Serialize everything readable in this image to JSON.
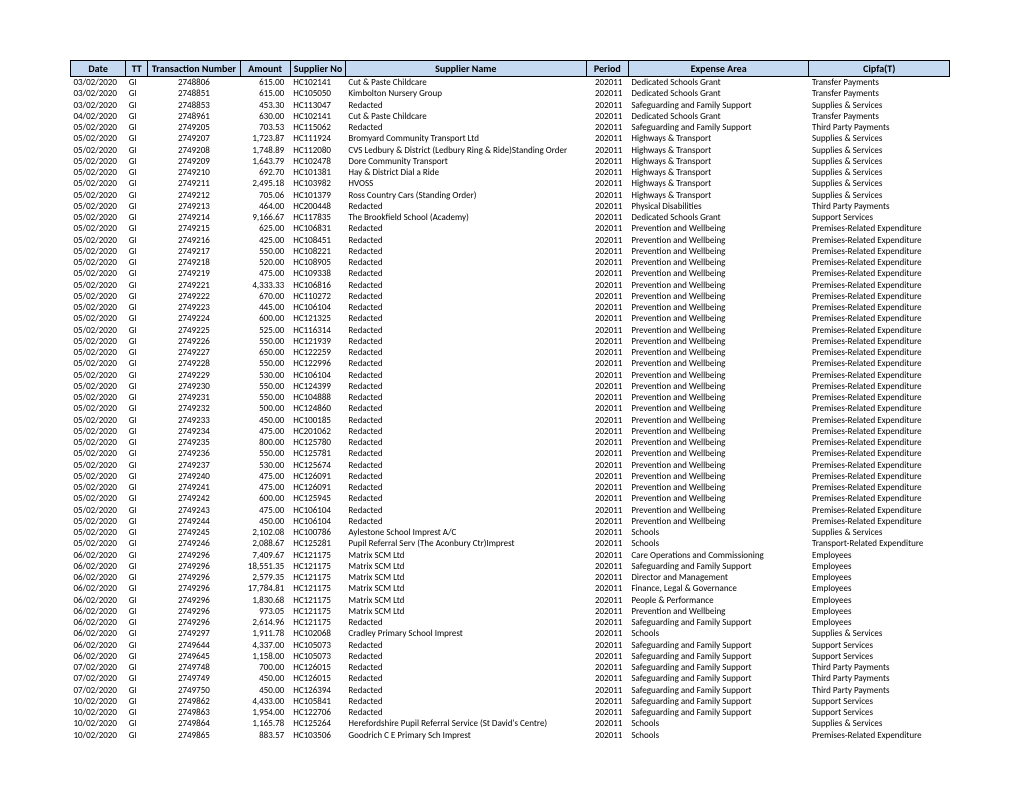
{
  "columns": [
    "Date",
    "TT",
    "Transaction Number",
    "Amount",
    "Supplier No",
    "Supplier Name",
    "Period",
    "Expense Area",
    "Cipfa(T)"
  ],
  "rows": [
    [
      "03/02/2020",
      "GI",
      "2748806",
      "615.00",
      "HC102141",
      "Cut & Paste Childcare",
      "202011",
      "Dedicated Schools Grant",
      "Transfer Payments"
    ],
    [
      "03/02/2020",
      "GI",
      "2748851",
      "615.00",
      "HC105050",
      "Kimbolton Nursery Group",
      "202011",
      "Dedicated Schools Grant",
      "Transfer Payments"
    ],
    [
      "03/02/2020",
      "GI",
      "2748853",
      "453.30",
      "HC113047",
      "Redacted",
      "202011",
      "Safeguarding and Family Support",
      "Supplies & Services"
    ],
    [
      "04/02/2020",
      "GI",
      "2748961",
      "630.00",
      "HC102141",
      "Cut & Paste Childcare",
      "202011",
      "Dedicated Schools Grant",
      "Transfer Payments"
    ],
    [
      "05/02/2020",
      "GI",
      "2749205",
      "703.53",
      "HC115062",
      "Redacted",
      "202011",
      "Safeguarding and Family Support",
      "Third Party Payments"
    ],
    [
      "05/02/2020",
      "GI",
      "2749207",
      "1,723.87",
      "HC111924",
      "Bromyard Community Transport Ltd",
      "202011",
      "Highways & Transport",
      "Supplies & Services"
    ],
    [
      "05/02/2020",
      "GI",
      "2749208",
      "1,748.89",
      "HC112080",
      "CVS Ledbury & District (Ledbury Ring & Ride)Standing Order",
      "202011",
      "Highways & Transport",
      "Supplies & Services"
    ],
    [
      "05/02/2020",
      "GI",
      "2749209",
      "1,643.79",
      "HC102478",
      "Dore Community Transport",
      "202011",
      "Highways & Transport",
      "Supplies & Services"
    ],
    [
      "05/02/2020",
      "GI",
      "2749210",
      "692.70",
      "HC101381",
      "Hay & District Dial a Ride",
      "202011",
      "Highways & Transport",
      "Supplies & Services"
    ],
    [
      "05/02/2020",
      "GI",
      "2749211",
      "2,495.18",
      "HC103982",
      "HVOSS",
      "202011",
      "Highways & Transport",
      "Supplies & Services"
    ],
    [
      "05/02/2020",
      "GI",
      "2749212",
      "705.06",
      "HC101379",
      "Ross Country Cars (Standing Order)",
      "202011",
      "Highways & Transport",
      "Supplies & Services"
    ],
    [
      "05/02/2020",
      "GI",
      "2749213",
      "464.00",
      "HC200448",
      "Redacted",
      "202011",
      "Physical Disabilities",
      "Third Party Payments"
    ],
    [
      "05/02/2020",
      "GI",
      "2749214",
      "9,166.67",
      "HC117835",
      "The Brookfield School (Academy)",
      "202011",
      "Dedicated Schools Grant",
      "Support Services"
    ],
    [
      "05/02/2020",
      "GI",
      "2749215",
      "625.00",
      "HC106831",
      "Redacted",
      "202011",
      "Prevention and Wellbeing",
      "Premises-Related Expenditure"
    ],
    [
      "05/02/2020",
      "GI",
      "2749216",
      "425.00",
      "HC108451",
      "Redacted",
      "202011",
      "Prevention and Wellbeing",
      "Premises-Related Expenditure"
    ],
    [
      "05/02/2020",
      "GI",
      "2749217",
      "550.00",
      "HC108221",
      "Redacted",
      "202011",
      "Prevention and Wellbeing",
      "Premises-Related Expenditure"
    ],
    [
      "05/02/2020",
      "GI",
      "2749218",
      "520.00",
      "HC108905",
      "Redacted",
      "202011",
      "Prevention and Wellbeing",
      "Premises-Related Expenditure"
    ],
    [
      "05/02/2020",
      "GI",
      "2749219",
      "475.00",
      "HC109338",
      "Redacted",
      "202011",
      "Prevention and Wellbeing",
      "Premises-Related Expenditure"
    ],
    [
      "05/02/2020",
      "GI",
      "2749221",
      "4,333.33",
      "HC106816",
      "Redacted",
      "202011",
      "Prevention and Wellbeing",
      "Premises-Related Expenditure"
    ],
    [
      "05/02/2020",
      "GI",
      "2749222",
      "670.00",
      "HC110272",
      "Redacted",
      "202011",
      "Prevention and Wellbeing",
      "Premises-Related Expenditure"
    ],
    [
      "05/02/2020",
      "GI",
      "2749223",
      "445.00",
      "HC106104",
      "Redacted",
      "202011",
      "Prevention and Wellbeing",
      "Premises-Related Expenditure"
    ],
    [
      "05/02/2020",
      "GI",
      "2749224",
      "600.00",
      "HC121325",
      "Redacted",
      "202011",
      "Prevention and Wellbeing",
      "Premises-Related Expenditure"
    ],
    [
      "05/02/2020",
      "GI",
      "2749225",
      "525.00",
      "HC116314",
      "Redacted",
      "202011",
      "Prevention and Wellbeing",
      "Premises-Related Expenditure"
    ],
    [
      "05/02/2020",
      "GI",
      "2749226",
      "550.00",
      "HC121939",
      "Redacted",
      "202011",
      "Prevention and Wellbeing",
      "Premises-Related Expenditure"
    ],
    [
      "05/02/2020",
      "GI",
      "2749227",
      "650.00",
      "HC122259",
      "Redacted",
      "202011",
      "Prevention and Wellbeing",
      "Premises-Related Expenditure"
    ],
    [
      "05/02/2020",
      "GI",
      "2749228",
      "550.00",
      "HC122996",
      "Redacted",
      "202011",
      "Prevention and Wellbeing",
      "Premises-Related Expenditure"
    ],
    [
      "05/02/2020",
      "GI",
      "2749229",
      "530.00",
      "HC106104",
      "Redacted",
      "202011",
      "Prevention and Wellbeing",
      "Premises-Related Expenditure"
    ],
    [
      "05/02/2020",
      "GI",
      "2749230",
      "550.00",
      "HC124399",
      "Redacted",
      "202011",
      "Prevention and Wellbeing",
      "Premises-Related Expenditure"
    ],
    [
      "05/02/2020",
      "GI",
      "2749231",
      "550.00",
      "HC104888",
      "Redacted",
      "202011",
      "Prevention and Wellbeing",
      "Premises-Related Expenditure"
    ],
    [
      "05/02/2020",
      "GI",
      "2749232",
      "500.00",
      "HC124860",
      "Redacted",
      "202011",
      "Prevention and Wellbeing",
      "Premises-Related Expenditure"
    ],
    [
      "05/02/2020",
      "GI",
      "2749233",
      "450.00",
      "HC100185",
      "Redacted",
      "202011",
      "Prevention and Wellbeing",
      "Premises-Related Expenditure"
    ],
    [
      "05/02/2020",
      "GI",
      "2749234",
      "475.00",
      "HC201062",
      "Redacted",
      "202011",
      "Prevention and Wellbeing",
      "Premises-Related Expenditure"
    ],
    [
      "05/02/2020",
      "GI",
      "2749235",
      "800.00",
      "HC125780",
      "Redacted",
      "202011",
      "Prevention and Wellbeing",
      "Premises-Related Expenditure"
    ],
    [
      "05/02/2020",
      "GI",
      "2749236",
      "550.00",
      "HC125781",
      "Redacted",
      "202011",
      "Prevention and Wellbeing",
      "Premises-Related Expenditure"
    ],
    [
      "05/02/2020",
      "GI",
      "2749237",
      "530.00",
      "HC125674",
      "Redacted",
      "202011",
      "Prevention and Wellbeing",
      "Premises-Related Expenditure"
    ],
    [
      "05/02/2020",
      "GI",
      "2749240",
      "475.00",
      "HC126091",
      "Redacted",
      "202011",
      "Prevention and Wellbeing",
      "Premises-Related Expenditure"
    ],
    [
      "05/02/2020",
      "GI",
      "2749241",
      "475.00",
      "HC126091",
      "Redacted",
      "202011",
      "Prevention and Wellbeing",
      "Premises-Related Expenditure"
    ],
    [
      "05/02/2020",
      "GI",
      "2749242",
      "600.00",
      "HC125945",
      "Redacted",
      "202011",
      "Prevention and Wellbeing",
      "Premises-Related Expenditure"
    ],
    [
      "05/02/2020",
      "GI",
      "2749243",
      "475.00",
      "HC106104",
      "Redacted",
      "202011",
      "Prevention and Wellbeing",
      "Premises-Related Expenditure"
    ],
    [
      "05/02/2020",
      "GI",
      "2749244",
      "450.00",
      "HC106104",
      "Redacted",
      "202011",
      "Prevention and Wellbeing",
      "Premises-Related Expenditure"
    ],
    [
      "05/02/2020",
      "GI",
      "2749245",
      "2,102.08",
      "HC100786",
      "Aylestone School Imprest A/C",
      "202011",
      "Schools",
      "Supplies & Services"
    ],
    [
      "05/02/2020",
      "GI",
      "2749246",
      "2,088.67",
      "HC125281",
      "Pupil Referral Serv (The Aconbury Ctr)Imprest",
      "202011",
      "Schools",
      "Transport-Related Expenditure"
    ],
    [
      "06/02/2020",
      "GI",
      "2749296",
      "7,409.67",
      "HC121175",
      "Matrix SCM Ltd",
      "202011",
      "Care Operations and Commissioning",
      "Employees"
    ],
    [
      "06/02/2020",
      "GI",
      "2749296",
      "18,551.35",
      "HC121175",
      "Matrix SCM Ltd",
      "202011",
      "Safeguarding and Family Support",
      "Employees"
    ],
    [
      "06/02/2020",
      "GI",
      "2749296",
      "2,579.35",
      "HC121175",
      "Matrix SCM Ltd",
      "202011",
      "Director and Management",
      "Employees"
    ],
    [
      "06/02/2020",
      "GI",
      "2749296",
      "17,784.81",
      "HC121175",
      "Matrix SCM Ltd",
      "202011",
      "Finance, Legal & Governance",
      "Employees"
    ],
    [
      "06/02/2020",
      "GI",
      "2749296",
      "1,830.68",
      "HC121175",
      "Matrix SCM Ltd",
      "202011",
      "People & Performance",
      "Employees"
    ],
    [
      "06/02/2020",
      "GI",
      "2749296",
      "973.05",
      "HC121175",
      "Matrix SCM Ltd",
      "202011",
      "Prevention and Wellbeing",
      "Employees"
    ],
    [
      "06/02/2020",
      "GI",
      "2749296",
      "2,614.96",
      "HC121175",
      "Redacted",
      "202011",
      "Safeguarding and Family Support",
      "Employees"
    ],
    [
      "06/02/2020",
      "GI",
      "2749297",
      "1,911.78",
      "HC102068",
      "Cradley Primary School Imprest",
      "202011",
      "Schools",
      "Supplies & Services"
    ],
    [
      "06/02/2020",
      "GI",
      "2749644",
      "4,337.00",
      "HC105073",
      "Redacted",
      "202011",
      "Safeguarding and Family Support",
      "Support Services"
    ],
    [
      "06/02/2020",
      "GI",
      "2749645",
      "1,158.00",
      "HC105073",
      "Redacted",
      "202011",
      "Safeguarding and Family Support",
      "Support Services"
    ],
    [
      "07/02/2020",
      "GI",
      "2749748",
      "700.00",
      "HC126015",
      "Redacted",
      "202011",
      "Safeguarding and Family Support",
      "Third Party Payments"
    ],
    [
      "07/02/2020",
      "GI",
      "2749749",
      "450.00",
      "HC126015",
      "Redacted",
      "202011",
      "Safeguarding and Family Support",
      "Third Party Payments"
    ],
    [
      "07/02/2020",
      "GI",
      "2749750",
      "450.00",
      "HC126394",
      "Redacted",
      "202011",
      "Safeguarding and Family Support",
      "Third Party Payments"
    ],
    [
      "10/02/2020",
      "GI",
      "2749862",
      "4,433.00",
      "HC105841",
      "Redacted",
      "202011",
      "Safeguarding and Family Support",
      "Support Services"
    ],
    [
      "10/02/2020",
      "GI",
      "2749863",
      "1,954.00",
      "HC122706",
      "Redacted",
      "202011",
      "Safeguarding and Family Support",
      "Support Services"
    ],
    [
      "10/02/2020",
      "GI",
      "2749864",
      "1,165.78",
      "HC125264",
      "Herefordshire Pupil Referral Service (St David's Centre)",
      "202011",
      "Schools",
      "Supplies & Services"
    ],
    [
      "10/02/2020",
      "GI",
      "2749865",
      "883.57",
      "HC103506",
      "Goodrich C E Primary Sch Imprest",
      "202011",
      "Schools",
      "Premises-Related Expenditure"
    ]
  ]
}
